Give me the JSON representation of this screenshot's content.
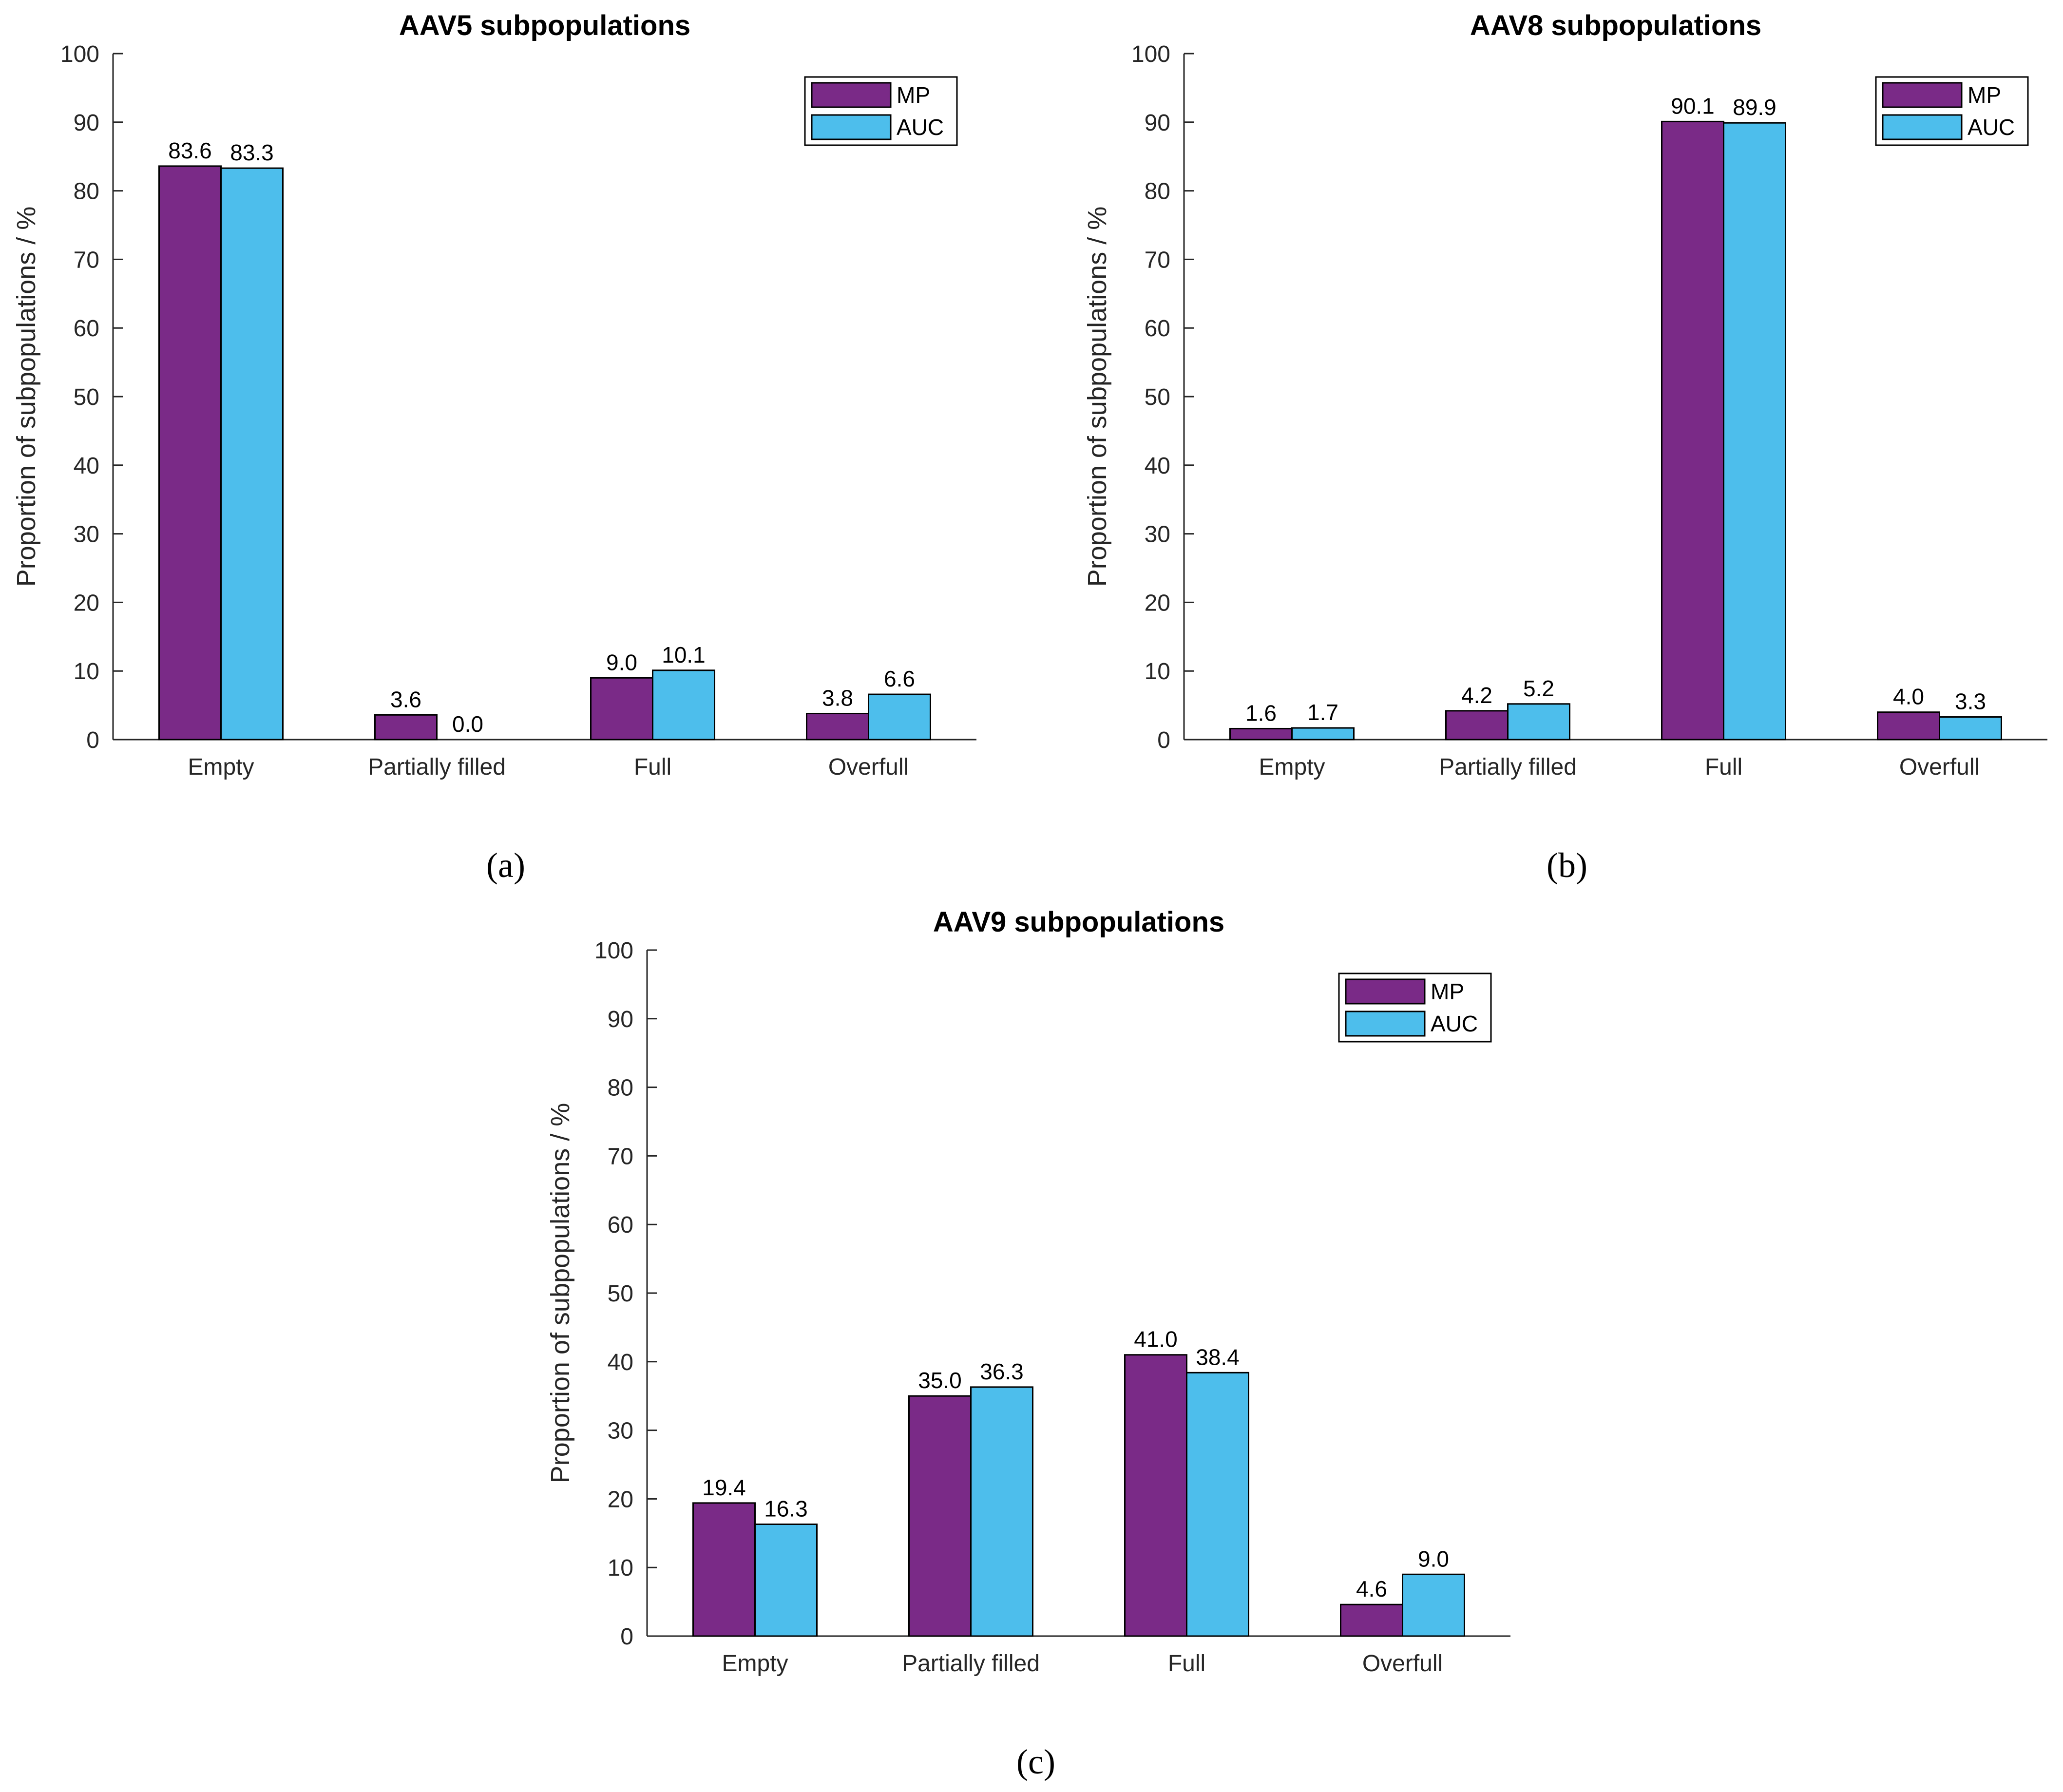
{
  "colors": {
    "MP": "#7a2a87",
    "AUC": "#4dbeec",
    "axis": "#262626",
    "bar_edge": "#000000"
  },
  "chart_data": [
    {
      "type": "bar",
      "title": "AAV5 subpopulations",
      "caption": "(a)",
      "xlabel": "",
      "ylabel": "Proportion of subpopulations / %",
      "ylim": [
        0,
        100
      ],
      "yticks": [
        0,
        10,
        20,
        30,
        40,
        50,
        60,
        70,
        80,
        90,
        100
      ],
      "categories": [
        "Empty",
        "Partially filled",
        "Full",
        "Overfull"
      ],
      "legend_position": "top-right",
      "series": [
        {
          "name": "MP",
          "values": [
            83.6,
            3.6,
            9.0,
            3.8
          ],
          "labels": [
            "83.6",
            "3.6",
            "9.0",
            "3.8"
          ]
        },
        {
          "name": "AUC",
          "values": [
            83.3,
            0.0,
            10.1,
            6.6
          ],
          "labels": [
            "83.3",
            "0.0",
            "10.1",
            "6.6"
          ]
        }
      ]
    },
    {
      "type": "bar",
      "title": "AAV8 subpopulations",
      "caption": "(b)",
      "xlabel": "",
      "ylabel": "Proportion of subpopulations / %",
      "ylim": [
        0,
        100
      ],
      "yticks": [
        0,
        10,
        20,
        30,
        40,
        50,
        60,
        70,
        80,
        90,
        100
      ],
      "categories": [
        "Empty",
        "Partially filled",
        "Full",
        "Overfull"
      ],
      "legend_position": "top-right",
      "series": [
        {
          "name": "MP",
          "values": [
            1.6,
            4.2,
            90.1,
            4.0
          ],
          "labels": [
            "1.6",
            "4.2",
            "90.1",
            "4.0"
          ]
        },
        {
          "name": "AUC",
          "values": [
            1.7,
            5.2,
            89.9,
            3.3
          ],
          "labels": [
            "1.7",
            "5.2",
            "89.9",
            "3.3"
          ]
        }
      ]
    },
    {
      "type": "bar",
      "title": "AAV9 subpopulations",
      "caption": "(c)",
      "xlabel": "",
      "ylabel": "Proportion of subpopulations / %",
      "ylim": [
        0,
        100
      ],
      "yticks": [
        0,
        10,
        20,
        30,
        40,
        50,
        60,
        70,
        80,
        90,
        100
      ],
      "categories": [
        "Empty",
        "Partially filled",
        "Full",
        "Overfull"
      ],
      "legend_position": "top-right",
      "series": [
        {
          "name": "MP",
          "values": [
            19.4,
            35.0,
            41.0,
            4.6
          ],
          "labels": [
            "19.4",
            "35.0",
            "41.0",
            "4.6"
          ]
        },
        {
          "name": "AUC",
          "values": [
            16.3,
            36.3,
            38.4,
            9.0
          ],
          "labels": [
            "16.3",
            "36.3",
            "38.4",
            "9.0"
          ]
        }
      ]
    }
  ]
}
